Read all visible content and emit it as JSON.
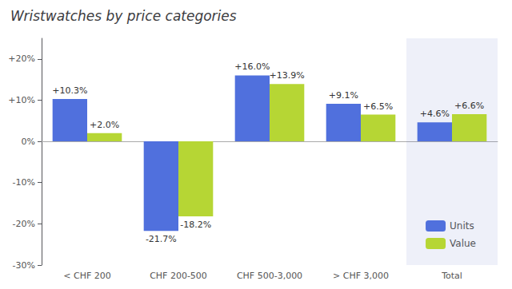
{
  "chart_data": {
    "type": "bar",
    "title": "Wristwatches by price categories",
    "categories": [
      "< CHF 200",
      "CHF 200-500",
      "CHF 500-3,000",
      "> CHF 3,000",
      "Total"
    ],
    "series": [
      {
        "name": "Units",
        "values": [
          10.3,
          -21.7,
          16.0,
          9.1,
          4.6
        ],
        "value_labels": [
          "+10.3%",
          "-21.7%",
          "+16.0%",
          "+9.1%",
          "+4.6%"
        ]
      },
      {
        "name": "Value",
        "values": [
          2.0,
          -18.2,
          13.9,
          6.5,
          6.6
        ],
        "value_labels": [
          "+2.0%",
          "-18.2%",
          "+13.9%",
          "+6.5%",
          "+6.6%"
        ]
      }
    ],
    "ylim": [
      -30,
      25
    ],
    "yticks": [
      {
        "value": -30,
        "label": "-30%"
      },
      {
        "value": -20,
        "label": "-20%"
      },
      {
        "value": -10,
        "label": "-10%"
      },
      {
        "value": 0,
        "label": "0%"
      },
      {
        "value": 10,
        "label": "+10%"
      },
      {
        "value": 20,
        "label": "+20%"
      }
    ],
    "grid": false,
    "legend": "lower right",
    "data_labels": true
  }
}
